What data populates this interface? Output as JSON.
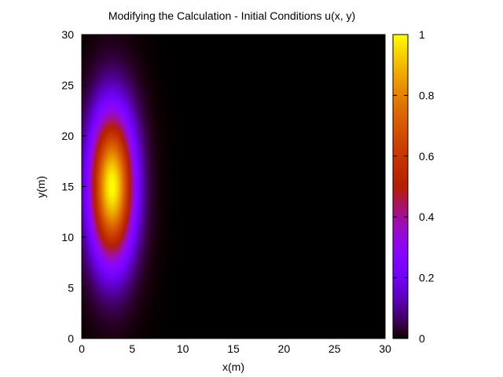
{
  "chart_data": {
    "type": "heatmap",
    "title": "Modifying the Calculation - Initial Conditions u(x, y)",
    "xlabel": "x(m)",
    "ylabel": "y(m)",
    "xlim": [
      0,
      30
    ],
    "ylim": [
      0,
      30
    ],
    "xticks": [
      0,
      5,
      10,
      15,
      20,
      25,
      30
    ],
    "yticks": [
      0,
      5,
      10,
      15,
      20,
      25,
      30
    ],
    "colorbar": {
      "range": [
        0,
        1
      ],
      "ticks": [
        0,
        0.2,
        0.4,
        0.6,
        0.8,
        1
      ],
      "tick_labels": [
        "0",
        "0.2",
        "0.4",
        "0.6",
        "0.8",
        "1"
      ],
      "colormap": "gnuplot-pm3d-default"
    },
    "field": {
      "function": "gaussian",
      "peak_value": 1.0,
      "center_x": 3,
      "center_y": 15,
      "sigma_x": 1.5,
      "sigma_y": 5
    },
    "grid": false,
    "legend": "none"
  }
}
